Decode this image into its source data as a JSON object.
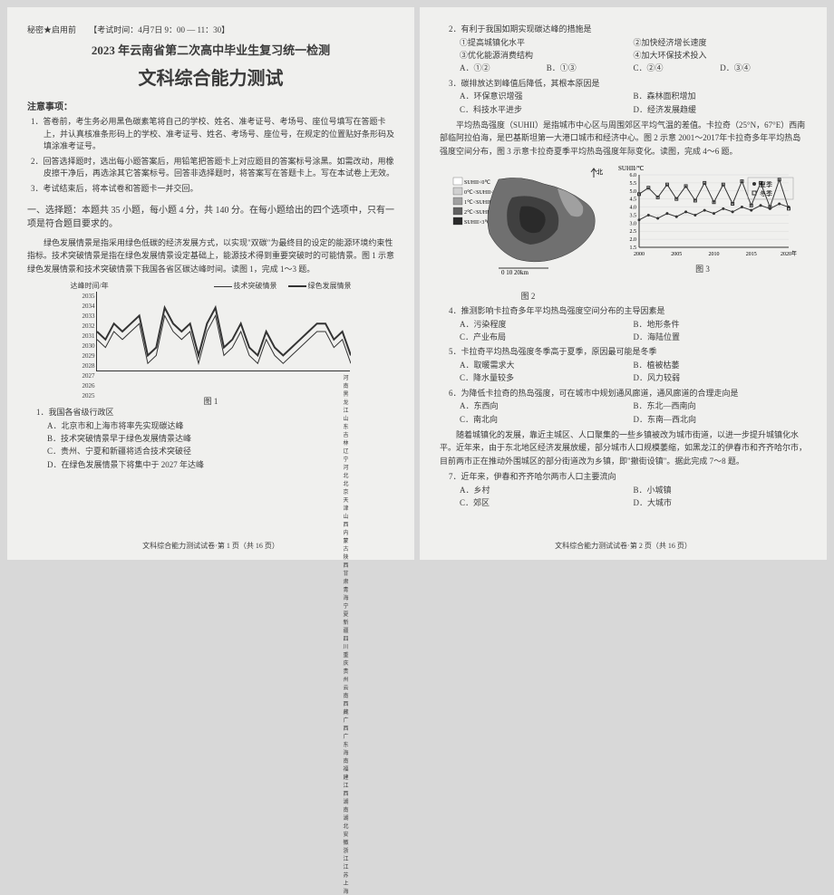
{
  "page_left": {
    "confidential": "秘密★启用前",
    "exam_time": "【考试时间：4月7日 9：00 — 11：30】",
    "title1": "2023 年云南省第二次高中毕业生复习统一检测",
    "title2": "文科综合能力测试",
    "notice_header": "注意事项：",
    "notices": [
      "1．答卷前，考生务必用黑色碳素笔将自己的学校、姓名、准考证号、考场号、座位号填写在答题卡上，并认真核准条形码上的学校、准考证号、姓名、考场号、座位号，在规定的位置贴好条形码及填涂准考证号。",
      "2．回答选择题时，选出每小题答案后，用铅笔把答题卡上对应题目的答案标号涂黑。如需改动，用橡皮擦干净后，再选涂其它答案标号。回答非选择题时，将答案写在答题卡上。写在本试卷上无效。",
      "3．考试结束后，将本试卷和答题卡一并交回。"
    ],
    "section1": "一、选择题：本题共 35 小题，每小题 4 分，共 140 分。在每小题给出的四个选项中，只有一项是符合题目要求的。",
    "intro_para": "绿色发展情景是指采用绿色低碳的经济发展方式，以实现\"双碳\"为最终目的设定的能源环境约束性指标。技术突破情景是指在绿色发展情景设定基础上，能源技术得到重要突破时的可能情景。图 1 示意绿色发展情景和技术突破情景下我国各省区碳达峰时间。读图 1，完成 1～3 题。",
    "chart": {
      "ylabel": "达峰时间/年",
      "legend": [
        {
          "label": "技术突破情景",
          "style": "thin"
        },
        {
          "label": "绿色发展情景",
          "style": "thick"
        }
      ],
      "yticks": [
        "2035",
        "2034",
        "2033",
        "2032",
        "2031",
        "2030",
        "2029",
        "2028",
        "2027",
        "2026",
        "2025"
      ],
      "provinces": [
        "河南",
        "黑龙江",
        "山东",
        "吉林",
        "辽宁",
        "河北",
        "北京",
        "天津",
        "山西",
        "内蒙古",
        "陕西",
        "甘肃",
        "青海",
        "宁夏",
        "新疆",
        "四川",
        "重庆",
        "贵州",
        "云南",
        "西藏",
        "广西",
        "广东",
        "海南",
        "福建",
        "江西",
        "湖南",
        "湖北",
        "安徽",
        "浙江",
        "江苏",
        "上海"
      ],
      "line_thick_y": [
        2030,
        2029,
        2031,
        2030,
        2031,
        2032,
        2027,
        2028,
        2033,
        2031,
        2030,
        2031,
        2027,
        2031,
        2033,
        2028,
        2029,
        2031,
        2028,
        2027,
        2030,
        2028,
        2027,
        2028,
        2029,
        2030,
        2031,
        2031,
        2029,
        2030,
        2027
      ],
      "line_thin_y": [
        2029,
        2028,
        2030,
        2029,
        2030,
        2031,
        2026,
        2027,
        2032,
        2030,
        2029,
        2030,
        2026,
        2030,
        2032,
        2027,
        2028,
        2030,
        2027,
        2026,
        2029,
        2027,
        2026,
        2027,
        2028,
        2029,
        2030,
        2030,
        2028,
        2029,
        2026
      ]
    },
    "fig1_label": "图 1",
    "q1": {
      "stem": "1．我国各省级行政区",
      "opts": [
        "A．北京市和上海市将率先实现碳达峰",
        "B．技术突破情景早于绿色发展情景达峰",
        "C．贵州、宁夏和新疆将适合技术突破径",
        "D．在绿色发展情景下将集中于 2027 年达峰"
      ]
    },
    "footer": "文科综合能力测试试卷·第 1 页（共 16 页）"
  },
  "page_right": {
    "q2": {
      "stem": "2．有利于我国如期实现碳达峰的措施是",
      "measures": [
        "①提高城镇化水平",
        "②加快经济增长速度",
        "③优化能源消费结构",
        "④加大环保技术投入"
      ],
      "opts": [
        "A．①②",
        "B．①③",
        "C．②④",
        "D．③④"
      ]
    },
    "q3": {
      "stem": "3．碳排放达到峰值后降低，其根本原因是",
      "opts": [
        "A．环保意识增强",
        "B．森林面积增加",
        "C．科技水平进步",
        "D．经济发展趋缓"
      ]
    },
    "intro_para2": "平均热岛强度（SUHII）是指城市中心区与周围郊区平均气温的差值。卡拉奇（25°N，67°E）西南部临阿拉伯海，是巴基斯坦第一大港口城市和经济中心。图 2 示意 2001～2017年卡拉奇多年平均热岛强度空间分布，图 3 示意卡拉奇夏季平均热岛强度年际变化。读图，完成 4～6 题。",
    "map_legend": [
      {
        "label": "SUHII<0℃",
        "color": "#ffffff"
      },
      {
        "label": "0℃<SUHII<1℃",
        "color": "#d0d0d0"
      },
      {
        "label": "1℃<SUHII<2℃",
        "color": "#a0a0a0"
      },
      {
        "label": "2℃<SUHII<3℃",
        "color": "#606060"
      },
      {
        "label": "SUHII>3℃",
        "color": "#2a2a2a"
      }
    ],
    "map_scale": "0   10   20km",
    "fig2_label": "图 2",
    "linechart": {
      "ylabel": "SUHII/℃",
      "legend": [
        {
          "label": "夏季",
          "marker": "dot"
        },
        {
          "label": "冬季",
          "marker": "square"
        }
      ],
      "xticks": [
        "2000",
        "2005",
        "2010",
        "2015",
        "2020年"
      ],
      "yticks": [
        "6.0",
        "5.5",
        "5.0",
        "4.5",
        "4.0",
        "3.5",
        "3.0",
        "2.5",
        "2.0",
        "1.5"
      ],
      "summer": [
        3.2,
        3.5,
        3.3,
        3.6,
        3.4,
        3.7,
        3.5,
        3.8,
        3.6,
        3.9,
        3.7,
        4.0,
        3.8,
        4.1,
        3.9,
        4.2,
        4.0
      ],
      "winter": [
        4.8,
        5.2,
        4.6,
        5.4,
        4.5,
        5.3,
        4.4,
        5.5,
        4.3,
        5.4,
        4.2,
        5.6,
        4.1,
        5.5,
        4.0,
        5.7,
        3.9
      ]
    },
    "fig3_label": "图 3",
    "q4": {
      "stem": "4．推测影响卡拉奇多年平均热岛强度空间分布的主导因素是",
      "opts": [
        "A．污染程度",
        "B．地形条件",
        "C．产业布局",
        "D．海陆位置"
      ]
    },
    "q5": {
      "stem": "5．卡拉奇平均热岛强度冬季高于夏季，原因最可能是冬季",
      "opts": [
        "A．取暖需求大",
        "B．植被枯萎",
        "C．降水量较多",
        "D．风力较弱"
      ]
    },
    "q6": {
      "stem": "6．为降低卡拉奇的热岛强度，可在城市中规划通风廊道，通风廊道的合理走向是",
      "opts": [
        "A．东西向",
        "B．东北—西南向",
        "C．南北向",
        "D．东南—西北向"
      ]
    },
    "intro_para3": "随着城镇化的发展，靠近主城区、人口聚集的一些乡镇被改为城市街道，以进一步提升城镇化水平。近年来，由于东北地区经济发展放缓，部分城市人口规模萎缩，如黑龙江的伊春市和齐齐哈尔市，目前两市正在推动外围城区的部分街道改为乡镇，即\"撤街设镇\"。据此完成 7～8 题。",
    "q7": {
      "stem": "7．近年来，伊春和齐齐哈尔两市人口主要流向",
      "opts": [
        "A．乡村",
        "B．小城镇",
        "C．郊区",
        "D．大城市"
      ]
    },
    "footer": "文科综合能力测试试卷·第 2 页（共 16 页）"
  }
}
